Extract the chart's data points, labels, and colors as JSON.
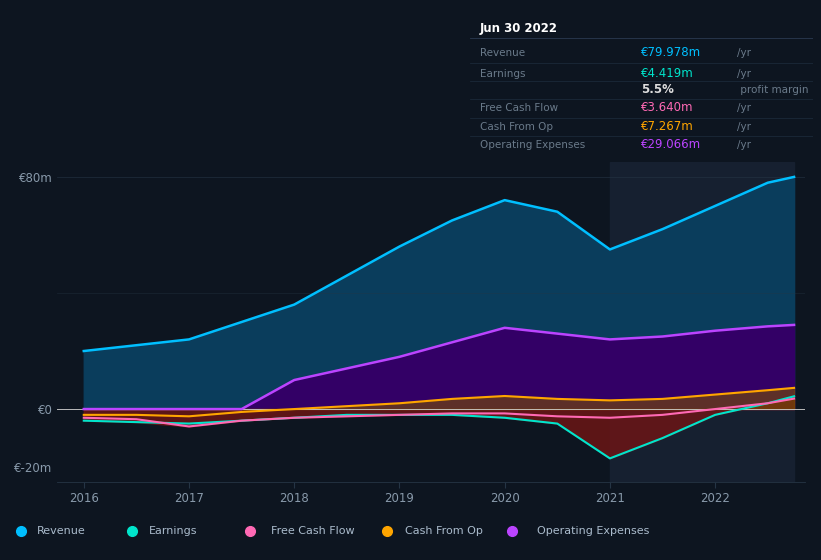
{
  "bg_color": "#0d1520",
  "plot_bg_color": "#0d1520",
  "highlight_region": [
    2021.0,
    2022.75
  ],
  "years": [
    2016,
    2016.5,
    2017,
    2017.5,
    2018,
    2018.5,
    2019,
    2019.5,
    2020,
    2020.5,
    2021,
    2021.5,
    2022,
    2022.5,
    2022.75
  ],
  "revenue": [
    20,
    22,
    24,
    30,
    36,
    46,
    56,
    65,
    72,
    68,
    55,
    62,
    70,
    78,
    80
  ],
  "earnings": [
    -4,
    -4.5,
    -5,
    -4,
    -3,
    -2,
    -2,
    -2,
    -3,
    -5,
    -17,
    -10,
    -2,
    2,
    4.4
  ],
  "free_cash_flow": [
    -3,
    -3.5,
    -6,
    -4,
    -3,
    -2.5,
    -2,
    -1.5,
    -1.5,
    -2.5,
    -3,
    -2,
    0,
    2,
    3.6
  ],
  "cash_from_op": [
    -2,
    -2,
    -2.5,
    -1,
    0,
    1,
    2,
    3.5,
    4.5,
    3.5,
    3,
    3.5,
    5,
    6.5,
    7.3
  ],
  "op_expenses": [
    0,
    0,
    0,
    0,
    10,
    14,
    18,
    23,
    28,
    26,
    24,
    25,
    27,
    28.5,
    29
  ],
  "revenue_color": "#00bfff",
  "revenue_fill": "#0a3d5c",
  "earnings_color": "#00e5cc",
  "fcf_color": "#ff69b4",
  "cfop_color": "#ffa500",
  "opex_color": "#bb44ff",
  "opex_fill": "#330066",
  "neg_fill": "#6b1515",
  "highlight_color": "#162030",
  "grid_color": "#253545",
  "text_color": "#8899aa",
  "zero_line_color": "#cccccc",
  "info_box": {
    "title": "Jun 30 2022",
    "rows": [
      {
        "label": "Revenue",
        "value": "€79.978m",
        "unit": "/yr",
        "value_color": "#00bfff"
      },
      {
        "label": "Earnings",
        "value": "€4.419m",
        "unit": "/yr",
        "value_color": "#00e5cc"
      },
      {
        "label": "",
        "value": "5.5%",
        "unit": " profit margin",
        "value_color": "#dddddd",
        "bold": true
      },
      {
        "label": "Free Cash Flow",
        "value": "€3.640m",
        "unit": "/yr",
        "value_color": "#ff69b4"
      },
      {
        "label": "Cash From Op",
        "value": "€7.267m",
        "unit": "/yr",
        "value_color": "#ffa500"
      },
      {
        "label": "Operating Expenses",
        "value": "€29.066m",
        "unit": "/yr",
        "value_color": "#bb44ff"
      }
    ]
  },
  "legend": [
    {
      "label": "Revenue",
      "color": "#00bfff"
    },
    {
      "label": "Earnings",
      "color": "#00e5cc"
    },
    {
      "label": "Free Cash Flow",
      "color": "#ff69b4"
    },
    {
      "label": "Cash From Op",
      "color": "#ffa500"
    },
    {
      "label": "Operating Expenses",
      "color": "#bb44ff"
    }
  ]
}
